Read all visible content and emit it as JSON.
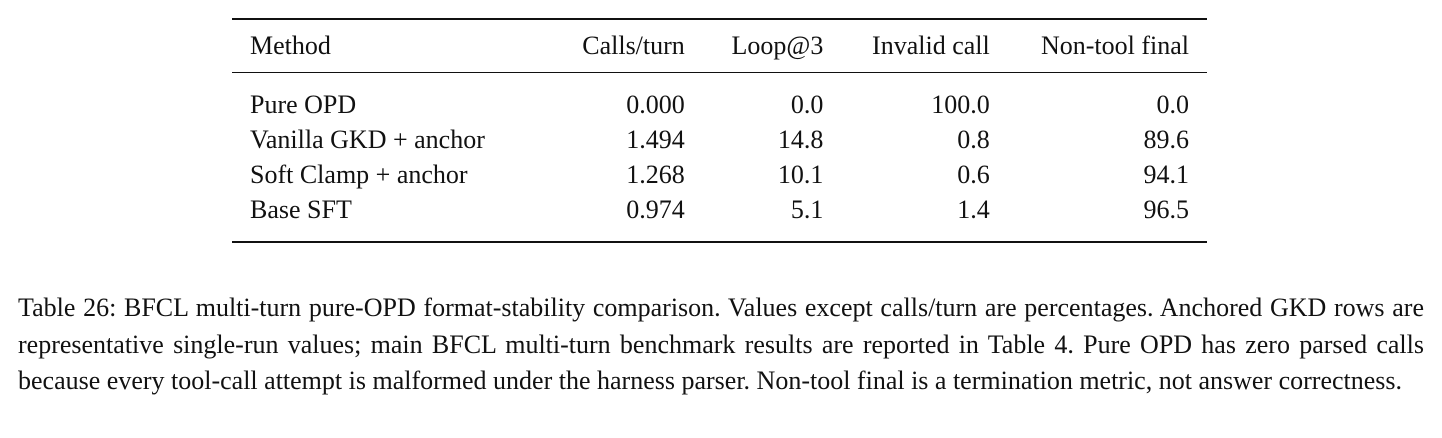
{
  "table": {
    "columns": [
      "Method",
      "Calls/turn",
      "Loop@3",
      "Invalid call",
      "Non-tool final"
    ],
    "rows": [
      [
        "Pure OPD",
        "0.000",
        "0.0",
        "100.0",
        "0.0"
      ],
      [
        "Vanilla GKD + anchor",
        "1.494",
        "14.8",
        "0.8",
        "89.6"
      ],
      [
        "Soft Clamp + anchor",
        "1.268",
        "10.1",
        "0.6",
        "94.1"
      ],
      [
        "Base SFT",
        "0.974",
        "5.1",
        "1.4",
        "96.5"
      ]
    ]
  },
  "caption": {
    "text": "Table 26: BFCL multi-turn pure-OPD format-stability comparison. Values except calls/turn are percentages. Anchored GKD rows are representative single-run values; main BFCL multi-turn benchmark results are reported in Table 4. Pure OPD has zero parsed calls because every tool-call attempt is malformed under the harness parser. Non-tool final is a termination metric, not answer correctness."
  }
}
